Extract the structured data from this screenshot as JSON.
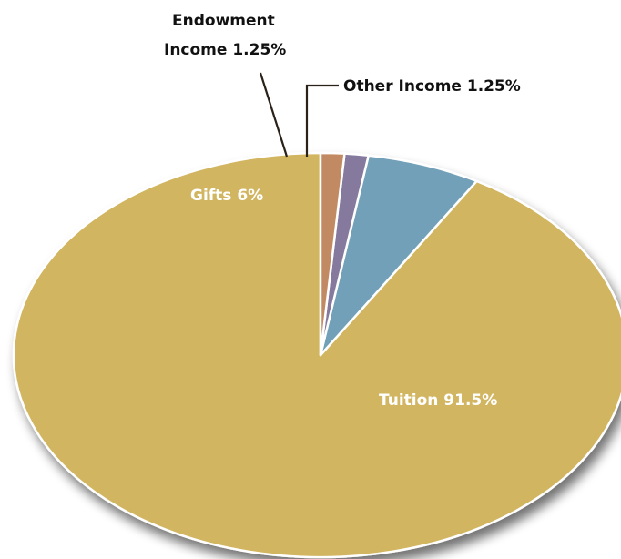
{
  "chart_data": {
    "type": "pie",
    "title": "",
    "start_angle_deg": 0,
    "direction": "counterclockwise",
    "slices": [
      {
        "label": "Tuition",
        "value": 91.5,
        "display": "91.5%",
        "color": "#d2b561"
      },
      {
        "label": "Gifts",
        "value": 6,
        "display": "6%",
        "color": "#72a0b8"
      },
      {
        "label": "Endowment Income",
        "value": 1.25,
        "display": "1.25%",
        "color": "#857a9e"
      },
      {
        "label": "Other Income",
        "value": 1.25,
        "display": "1.25%",
        "color": "#c28a62"
      }
    ],
    "labels": {
      "tuition": "Tuition 91.5%",
      "gifts": "Gifts 6%",
      "endowment_line1": "Endowment",
      "endowment_line2": "Income 1.25%",
      "other": "Other Income 1.25%"
    }
  }
}
